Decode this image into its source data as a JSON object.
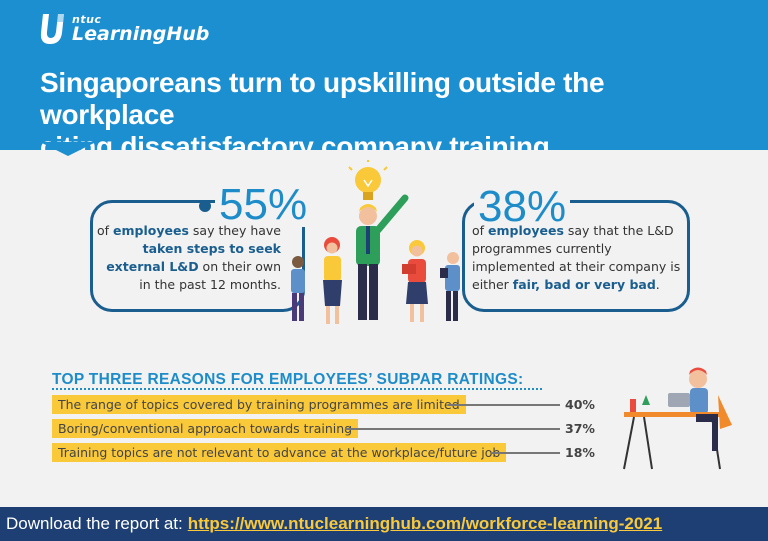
{
  "brand": {
    "small": "ntuc",
    "name": "LearningHub",
    "logo_icon": "u-logo-icon",
    "colors": {
      "primary": "#1b8fd0",
      "navy": "#1d3f73",
      "highlight": "#f9c93a"
    }
  },
  "headline": {
    "line1": "Singaporeans turn to upskilling outside the workplace",
    "line2": "citing dissatisfactory company training"
  },
  "stats": [
    {
      "value": "55%",
      "pre": "of ",
      "bold1": "employees",
      "mid1": " say they have ",
      "bold2": "taken steps to seek external L&D",
      "post": " on their own in the past 12 months."
    },
    {
      "value": "38%",
      "pre": "of ",
      "bold1": "employees",
      "mid1": " say that the L&D programmes currently implemented at their company is either ",
      "bold2": "fair, bad or very bad",
      "post": "."
    }
  ],
  "reasons": {
    "title": "TOP THREE REASONS FOR EMPLOYEES’ SUBPAR RATINGS:",
    "items": [
      {
        "label": "The range of topics covered by training programmes are limited",
        "percent": "40%"
      },
      {
        "label": "Boring/conventional approach towards training",
        "percent": "37%"
      },
      {
        "label": "Training topics are not relevant to advance at the workplace/future job",
        "percent": "18%"
      }
    ]
  },
  "footer": {
    "label": "Download the report at:",
    "link": "https://www.ntuclearninghub.com/workforce-learning-2021"
  }
}
